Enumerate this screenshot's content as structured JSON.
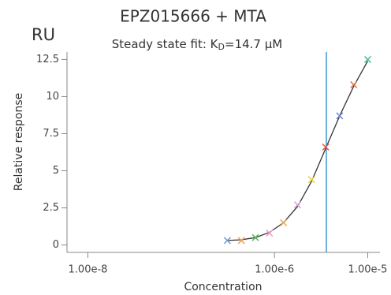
{
  "chart_data": {
    "type": "scatter",
    "title": "EPZ015666 + MTA",
    "subtitle_prefix": "Steady state fit: K",
    "subtitle_sub": "D",
    "subtitle_suffix": "=14.7 µM",
    "unit_label": "RU",
    "xlabel": "Concentration",
    "ylabel": "Relative response",
    "xscale": "log",
    "x": [
      3.125e-07,
      4.42e-07,
      6.25e-07,
      8.84e-07,
      1.25e-06,
      1.77e-06,
      2.5e-06,
      3.54e-06,
      5e-06,
      7.07e-06,
      1e-05
    ],
    "values": [
      0.3,
      0.3,
      0.5,
      0.8,
      1.5,
      2.7,
      4.4,
      6.6,
      8.7,
      10.8,
      12.5
    ],
    "colors": [
      "#6a9fd8",
      "#f0a04b",
      "#5cb85c",
      "#e8a0c8",
      "#f0a04b",
      "#d8a0d0",
      "#e8d050",
      "#e06050",
      "#6a88c8",
      "#e87050",
      "#50c090"
    ],
    "fit_line": {
      "x": [
        3.125e-07,
        4.42e-07,
        6.25e-07,
        8.84e-07,
        1.25e-06,
        1.77e-06,
        2.5e-06,
        3.54e-06,
        5e-06,
        7.07e-06,
        1e-05
      ],
      "y": [
        0.3,
        0.35,
        0.5,
        0.85,
        1.5,
        2.6,
        4.3,
        6.5,
        8.7,
        10.7,
        12.4
      ],
      "color": "#333333"
    },
    "reference_line_x": 3.6e-06,
    "reference_line_color": "#3a9ad0",
    "xlim": [
      8e-09,
      1.3e-05
    ],
    "xticks": [
      {
        "value": 1e-08,
        "label": "1.00e-8"
      },
      {
        "value": 1e-06,
        "label": "1.00e-6"
      },
      {
        "value": 1e-05,
        "label": "1.00e-5"
      }
    ],
    "ylim": [
      -0.5,
      13
    ],
    "yticks": [
      0,
      2.5,
      5,
      7.5,
      10,
      12.5
    ]
  }
}
